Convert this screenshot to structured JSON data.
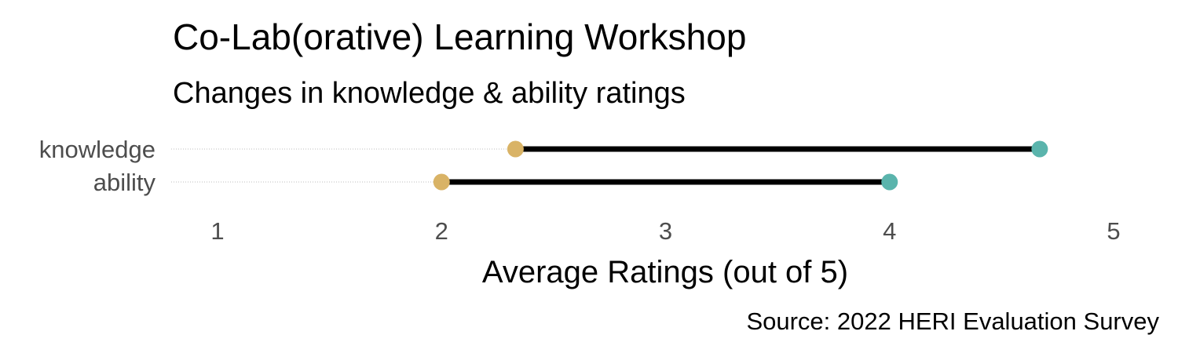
{
  "chart_data": {
    "type": "dumbbell",
    "title": "Co-Lab(orative) Learning Workshop",
    "subtitle": "Changes in knowledge & ability ratings",
    "xlabel": "Average Ratings (out of 5)",
    "caption": "Source: 2022 HERI Evaluation Survey",
    "xlim": [
      1,
      5
    ],
    "x_ticks": [
      "1",
      "2",
      "3",
      "4",
      "5"
    ],
    "categories": [
      "knowledge",
      "ability"
    ],
    "series": [
      {
        "values": [
          2.33,
          2.0
        ],
        "color": "#d9b366"
      },
      {
        "values": [
          4.67,
          4.0
        ],
        "color": "#5ab4ac"
      }
    ],
    "segment_color": "#000000",
    "guide_color": "#bdbdbd",
    "grid": false,
    "legend": "none"
  }
}
